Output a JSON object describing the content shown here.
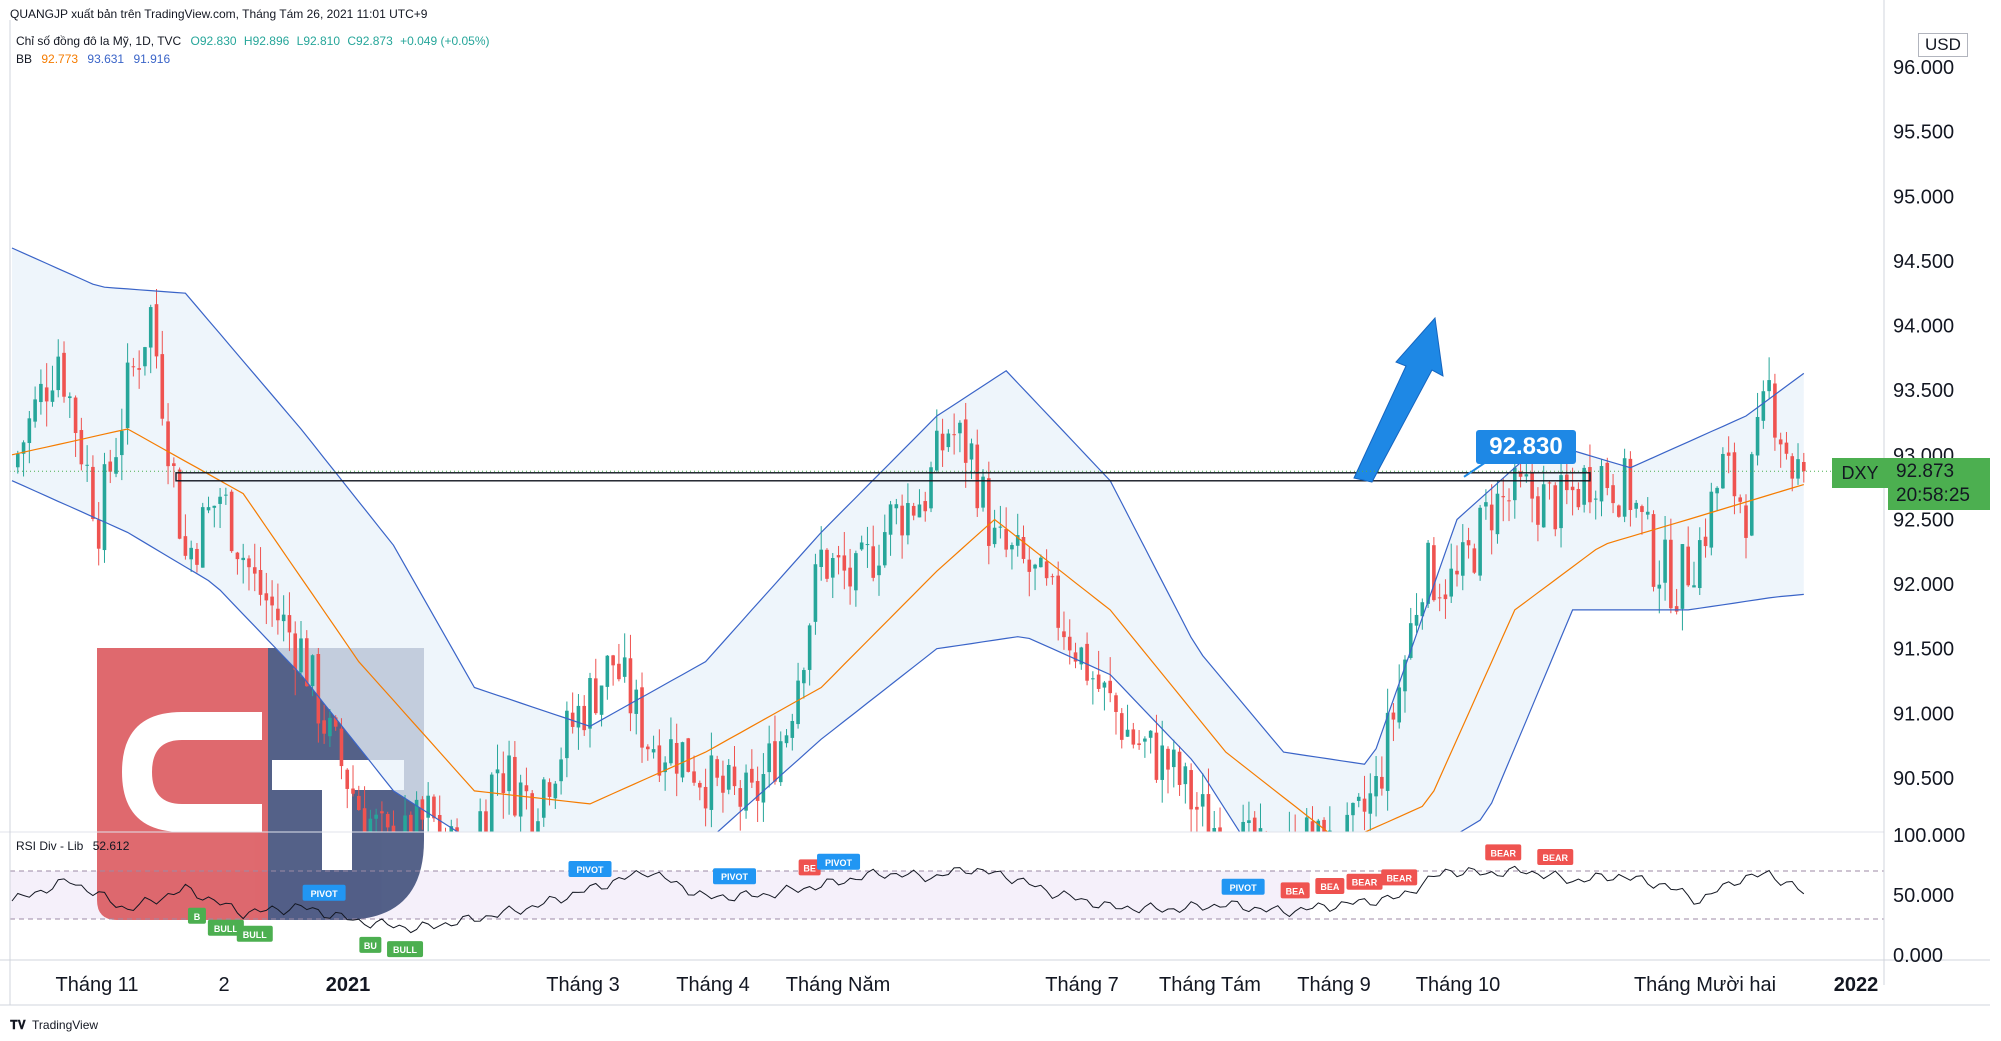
{
  "header": {
    "publisher": "QUANGJP xuất bản trên TradingView.com, Tháng Tám 26, 2021 11:01 UTC+9",
    "symbol_desc": "Chỉ số đồng đô la Mỹ, 1D, TVC",
    "ohlc": {
      "o": "O92.830",
      "h": "H92.896",
      "l": "L92.810",
      "c": "C92.873",
      "chg": "+0.049 (+0.05%)"
    },
    "bb_label": "BB",
    "bb_values": [
      "92.773",
      "93.631",
      "91.916"
    ]
  },
  "rsi_label": "RSI Div - Lib",
  "rsi_value": "52.612",
  "currency": "USD",
  "symbol": "DXY",
  "last_price": "92.873",
  "countdown": "20:58:25",
  "level_label": "92.830",
  "footer_brand": "TradingView",
  "logo_text": "GT",
  "colors": {
    "up": "#26a69a",
    "down": "#ef5350",
    "bb_basis": "#f57c00",
    "bb_band": "#3a64c8",
    "bb_fill": "#e8f2fa",
    "last_price": "#4caf50",
    "level_label": "#1e88e5",
    "bull_badge": "#4caf50",
    "bear_badge": "#ef5350",
    "pivot_badge": "#2196f3",
    "rsi_line": "#131722",
    "rsi_fill": "#f5f0fa",
    "logo_red": "#d8494f",
    "logo_blue": "#2f3f6f"
  },
  "chart_data": [
    {
      "type": "candlestick",
      "title": "Chỉ số đồng đô la Mỹ, 1D, TVC",
      "ylabel": "USD",
      "ylim": [
        89.5,
        96.3
      ],
      "y_ticks": [
        "96.000",
        "95.500",
        "95.000",
        "94.500",
        "94.000",
        "93.500",
        "93.000",
        "92.500",
        "92.000",
        "91.500",
        "91.000",
        "90.500"
      ],
      "x_tick_labels": [
        "Tháng 11",
        "2",
        "2021",
        "Tháng 3",
        "Tháng 4",
        "Tháng Năm",
        "Tháng 7",
        "Tháng Tám",
        "Tháng 9",
        "Tháng 10",
        "Tháng Mười hai",
        "2022"
      ],
      "close_path_points": [
        {
          "i": 0,
          "v": 92.9
        },
        {
          "i": 8,
          "v": 93.8
        },
        {
          "i": 15,
          "v": 92.5
        },
        {
          "i": 20,
          "v": 93.5
        },
        {
          "i": 24,
          "v": 94.1
        },
        {
          "i": 30,
          "v": 92.2
        },
        {
          "i": 36,
          "v": 92.7
        },
        {
          "i": 42,
          "v": 92.0
        },
        {
          "i": 50,
          "v": 91.5
        },
        {
          "i": 55,
          "v": 90.8
        },
        {
          "i": 60,
          "v": 90.3
        },
        {
          "i": 66,
          "v": 89.9
        },
        {
          "i": 72,
          "v": 90.2
        },
        {
          "i": 78,
          "v": 89.8
        },
        {
          "i": 84,
          "v": 90.6
        },
        {
          "i": 90,
          "v": 90.3
        },
        {
          "i": 98,
          "v": 91.0
        },
        {
          "i": 104,
          "v": 91.4
        },
        {
          "i": 110,
          "v": 90.8
        },
        {
          "i": 116,
          "v": 90.7
        },
        {
          "i": 122,
          "v": 90.4
        },
        {
          "i": 128,
          "v": 90.3
        },
        {
          "i": 134,
          "v": 90.9
        },
        {
          "i": 140,
          "v": 92.2
        },
        {
          "i": 146,
          "v": 92.0
        },
        {
          "i": 152,
          "v": 92.5
        },
        {
          "i": 158,
          "v": 92.7
        },
        {
          "i": 162,
          "v": 93.2
        },
        {
          "i": 166,
          "v": 93.0
        },
        {
          "i": 170,
          "v": 92.3
        },
        {
          "i": 176,
          "v": 92.1
        },
        {
          "i": 182,
          "v": 91.7
        },
        {
          "i": 188,
          "v": 91.2
        },
        {
          "i": 194,
          "v": 90.8
        },
        {
          "i": 200,
          "v": 90.6
        },
        {
          "i": 206,
          "v": 90.2
        },
        {
          "i": 212,
          "v": 90.0
        },
        {
          "i": 218,
          "v": 89.8
        },
        {
          "i": 224,
          "v": 90.0
        },
        {
          "i": 230,
          "v": 89.9
        },
        {
          "i": 236,
          "v": 90.4
        },
        {
          "i": 240,
          "v": 91.2
        },
        {
          "i": 244,
          "v": 92.1
        },
        {
          "i": 250,
          "v": 92.0
        },
        {
          "i": 256,
          "v": 92.6
        },
        {
          "i": 262,
          "v": 92.7
        },
        {
          "i": 268,
          "v": 92.6
        },
        {
          "i": 274,
          "v": 92.9
        },
        {
          "i": 280,
          "v": 92.7
        },
        {
          "i": 284,
          "v": 92.2
        },
        {
          "i": 288,
          "v": 92.0
        },
        {
          "i": 292,
          "v": 92.3
        },
        {
          "i": 296,
          "v": 92.9
        },
        {
          "i": 300,
          "v": 92.6
        },
        {
          "i": 304,
          "v": 93.5
        },
        {
          "i": 308,
          "v": 92.9
        },
        {
          "i": 310,
          "v": 92.87
        }
      ],
      "bollinger": {
        "basis": [
          {
            "i": 0,
            "v": 93.0
          },
          {
            "i": 20,
            "v": 93.2
          },
          {
            "i": 40,
            "v": 92.7
          },
          {
            "i": 60,
            "v": 91.4
          },
          {
            "i": 80,
            "v": 90.4
          },
          {
            "i": 100,
            "v": 90.3
          },
          {
            "i": 120,
            "v": 90.7
          },
          {
            "i": 140,
            "v": 91.2
          },
          {
            "i": 160,
            "v": 92.1
          },
          {
            "i": 170,
            "v": 92.5
          },
          {
            "i": 190,
            "v": 91.8
          },
          {
            "i": 210,
            "v": 90.7
          },
          {
            "i": 230,
            "v": 90.0
          },
          {
            "i": 245,
            "v": 90.3
          },
          {
            "i": 260,
            "v": 91.8
          },
          {
            "i": 275,
            "v": 92.3
          },
          {
            "i": 290,
            "v": 92.5
          },
          {
            "i": 310,
            "v": 92.77
          }
        ],
        "upper": [
          {
            "i": 0,
            "v": 94.6
          },
          {
            "i": 15,
            "v": 94.3
          },
          {
            "i": 30,
            "v": 94.25
          },
          {
            "i": 50,
            "v": 93.2
          },
          {
            "i": 66,
            "v": 92.3
          },
          {
            "i": 80,
            "v": 91.2
          },
          {
            "i": 100,
            "v": 90.9
          },
          {
            "i": 120,
            "v": 91.4
          },
          {
            "i": 140,
            "v": 92.4
          },
          {
            "i": 160,
            "v": 93.3
          },
          {
            "i": 172,
            "v": 93.65
          },
          {
            "i": 190,
            "v": 92.8
          },
          {
            "i": 205,
            "v": 91.5
          },
          {
            "i": 220,
            "v": 90.7
          },
          {
            "i": 235,
            "v": 90.6
          },
          {
            "i": 250,
            "v": 92.5
          },
          {
            "i": 265,
            "v": 93.1
          },
          {
            "i": 280,
            "v": 92.9
          },
          {
            "i": 300,
            "v": 93.3
          },
          {
            "i": 310,
            "v": 93.63
          }
        ],
        "lower": [
          {
            "i": 0,
            "v": 92.8
          },
          {
            "i": 20,
            "v": 92.4
          },
          {
            "i": 35,
            "v": 92.0
          },
          {
            "i": 50,
            "v": 91.3
          },
          {
            "i": 66,
            "v": 90.4
          },
          {
            "i": 80,
            "v": 90.0
          },
          {
            "i": 100,
            "v": 89.9
          },
          {
            "i": 120,
            "v": 90.0
          },
          {
            "i": 140,
            "v": 90.8
          },
          {
            "i": 160,
            "v": 91.5
          },
          {
            "i": 175,
            "v": 91.6
          },
          {
            "i": 190,
            "v": 91.3
          },
          {
            "i": 205,
            "v": 90.6
          },
          {
            "i": 215,
            "v": 89.9
          },
          {
            "i": 240,
            "v": 89.8
          },
          {
            "i": 255,
            "v": 90.2
          },
          {
            "i": 270,
            "v": 91.8
          },
          {
            "i": 290,
            "v": 91.8
          },
          {
            "i": 305,
            "v": 91.9
          },
          {
            "i": 310,
            "v": 91.92
          }
        ]
      },
      "horizontal_level": 92.83,
      "last_close": 92.873
    },
    {
      "type": "line",
      "title": "RSI Div - Lib",
      "ylim": [
        0,
        100
      ],
      "y_ticks": [
        "100.000",
        "50.000",
        "0.000"
      ],
      "overbought": 70,
      "oversold": 30,
      "points": [
        {
          "i": 0,
          "v": 45
        },
        {
          "i": 10,
          "v": 62
        },
        {
          "i": 20,
          "v": 38
        },
        {
          "i": 30,
          "v": 55
        },
        {
          "i": 40,
          "v": 35
        },
        {
          "i": 50,
          "v": 40
        },
        {
          "i": 60,
          "v": 28
        },
        {
          "i": 70,
          "v": 22
        },
        {
          "i": 80,
          "v": 30
        },
        {
          "i": 90,
          "v": 40
        },
        {
          "i": 100,
          "v": 55
        },
        {
          "i": 110,
          "v": 70
        },
        {
          "i": 120,
          "v": 48
        },
        {
          "i": 130,
          "v": 50
        },
        {
          "i": 140,
          "v": 58
        },
        {
          "i": 150,
          "v": 68
        },
        {
          "i": 160,
          "v": 65
        },
        {
          "i": 165,
          "v": 72
        },
        {
          "i": 172,
          "v": 66
        },
        {
          "i": 180,
          "v": 52
        },
        {
          "i": 190,
          "v": 40
        },
        {
          "i": 200,
          "v": 38
        },
        {
          "i": 210,
          "v": 42
        },
        {
          "i": 220,
          "v": 36
        },
        {
          "i": 230,
          "v": 42
        },
        {
          "i": 240,
          "v": 48
        },
        {
          "i": 248,
          "v": 70
        },
        {
          "i": 255,
          "v": 68
        },
        {
          "i": 262,
          "v": 70
        },
        {
          "i": 270,
          "v": 62
        },
        {
          "i": 278,
          "v": 66
        },
        {
          "i": 286,
          "v": 58
        },
        {
          "i": 292,
          "v": 45
        },
        {
          "i": 298,
          "v": 62
        },
        {
          "i": 304,
          "v": 68
        },
        {
          "i": 310,
          "v": 52
        }
      ],
      "signals": [
        {
          "label": "B",
          "kind": "bull",
          "i": 32
        },
        {
          "label": "BULL",
          "i": 37,
          "kind": "bull"
        },
        {
          "label": "BULL",
          "i": 42,
          "kind": "bull"
        },
        {
          "label": "PIVOT",
          "i": 54,
          "kind": "pivot"
        },
        {
          "label": "BU",
          "i": 62,
          "kind": "bull"
        },
        {
          "label": "BULL",
          "i": 68,
          "kind": "bull"
        },
        {
          "label": "PIVOT",
          "i": 100,
          "kind": "pivot"
        },
        {
          "label": "PIVOT",
          "i": 125,
          "kind": "pivot"
        },
        {
          "label": "BE",
          "i": 138,
          "kind": "bear"
        },
        {
          "label": "PIVOT",
          "i": 143,
          "kind": "pivot"
        },
        {
          "label": "PIVOT",
          "i": 213,
          "kind": "pivot"
        },
        {
          "label": "BEA",
          "i": 222,
          "kind": "bear"
        },
        {
          "label": "BEA",
          "i": 228,
          "kind": "bear"
        },
        {
          "label": "BEAR",
          "i": 234,
          "kind": "bear"
        },
        {
          "label": "BEAR",
          "i": 240,
          "kind": "bear"
        },
        {
          "label": "BEAR",
          "i": 258,
          "kind": "bear"
        },
        {
          "label": "BEAR",
          "i": 267,
          "kind": "bear"
        }
      ]
    }
  ]
}
